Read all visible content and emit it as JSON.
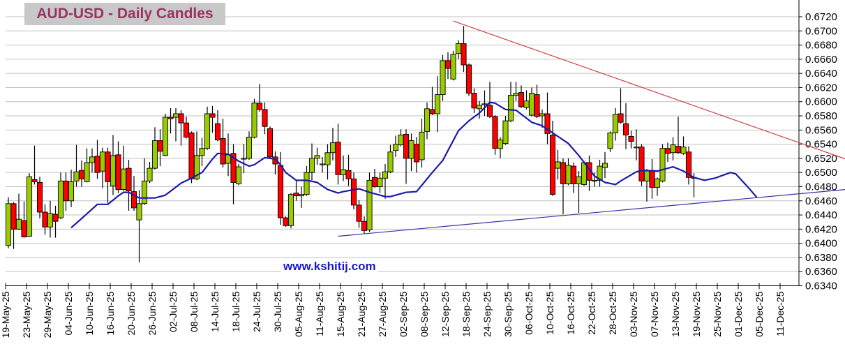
{
  "chart_data": {
    "type": "candlestick",
    "title": "AUD-USD - Daily Candles",
    "watermark": "www.kshitij.com",
    "ylim": [
      0.634,
      0.672
    ],
    "ytick_step": 0.002,
    "grid": true,
    "y_axis_side": "right",
    "colors": {
      "up": "#99cc00",
      "down": "#ff0000",
      "moving_average": "#1a1aaa",
      "resistance": "#d04040",
      "support": "#3333aa",
      "title_text": "#993366",
      "title_bg": "#c8c8c8",
      "watermark": "#1a1acc",
      "grid": "#c0c0c0"
    },
    "x_tick_labels": [
      "19-May-25",
      "23-May-25",
      "29-May-25",
      "04-Jun-25",
      "10-Jun-25",
      "16-Jun-25",
      "20-Jun-25",
      "26-Jun-25",
      "02-Jul-25",
      "08-Jul-25",
      "14-Jul-25",
      "18-Jul-25",
      "24-Jul-25",
      "30-Jul-25",
      "05-Aug-25",
      "11-Aug-25",
      "15-Aug-25",
      "21-Aug-25",
      "27-Aug-25",
      "02-Sep-25",
      "08-Sep-25",
      "12-Sep-25",
      "18-Sep-25",
      "24-Sep-25",
      "30-Sep-25",
      "06-Oct-25",
      "10-Oct-25",
      "16-Oct-25",
      "22-Oct-25",
      "28-Oct-25",
      "03-Nov-25",
      "07-Nov-25",
      "13-Nov-25",
      "19-Nov-25",
      "25-Nov-25",
      "01-Dec-25",
      "05-Dec-25",
      "11-Dec-25"
    ],
    "y_tick_labels": [
      "0.6720",
      "0.6700",
      "0.6680",
      "0.6660",
      "0.6640",
      "0.6620",
      "0.6600",
      "0.6580",
      "0.6560",
      "0.6540",
      "0.6520",
      "0.6500",
      "0.6480",
      "0.6460",
      "0.6440",
      "0.6420",
      "0.6400",
      "0.6380",
      "0.6360",
      "0.6340"
    ],
    "candle_fields": [
      "date",
      "open",
      "high",
      "low",
      "close"
    ],
    "candles": [
      [
        "2025-05-19",
        0.6397,
        0.6465,
        0.6393,
        0.6456
      ],
      [
        "2025-05-20",
        0.6456,
        0.6458,
        0.6392,
        0.642
      ],
      [
        "2025-05-21",
        0.642,
        0.647,
        0.6419,
        0.6434
      ],
      [
        "2025-05-22",
        0.6432,
        0.6459,
        0.6408,
        0.6409
      ],
      [
        "2025-05-23",
        0.641,
        0.6499,
        0.6409,
        0.6494
      ],
      [
        "2025-05-26",
        0.649,
        0.6538,
        0.6483,
        0.6487
      ],
      [
        "2025-05-27",
        0.6486,
        0.6494,
        0.6435,
        0.6444
      ],
      [
        "2025-05-28",
        0.6444,
        0.6455,
        0.6412,
        0.6423
      ],
      [
        "2025-05-29",
        0.6423,
        0.646,
        0.6408,
        0.6442
      ],
      [
        "2025-05-30",
        0.6441,
        0.6453,
        0.6408,
        0.6431
      ],
      [
        "2025-06-02",
        0.6436,
        0.65,
        0.6434,
        0.6488
      ],
      [
        "2025-06-03",
        0.6488,
        0.65,
        0.6446,
        0.646
      ],
      [
        "2025-06-04",
        0.646,
        0.6504,
        0.6451,
        0.6487
      ],
      [
        "2025-06-05",
        0.6488,
        0.6539,
        0.648,
        0.6501
      ],
      [
        "2025-06-06",
        0.6503,
        0.6517,
        0.648,
        0.6491
      ],
      [
        "2025-06-09",
        0.6487,
        0.6534,
        0.6486,
        0.6514
      ],
      [
        "2025-06-10",
        0.6514,
        0.6534,
        0.65,
        0.6522
      ],
      [
        "2025-06-11",
        0.6523,
        0.6546,
        0.6491,
        0.65
      ],
      [
        "2025-06-12",
        0.6502,
        0.6535,
        0.6478,
        0.6529
      ],
      [
        "2025-06-13",
        0.6529,
        0.6535,
        0.6457,
        0.6487
      ],
      [
        "2025-06-16",
        0.6481,
        0.6553,
        0.6468,
        0.6524
      ],
      [
        "2025-06-17",
        0.6525,
        0.6544,
        0.6471,
        0.6476
      ],
      [
        "2025-06-18",
        0.6476,
        0.6538,
        0.6474,
        0.6505
      ],
      [
        "2025-06-19",
        0.6506,
        0.6518,
        0.6446,
        0.6474
      ],
      [
        "2025-06-20",
        0.6473,
        0.6495,
        0.6446,
        0.645
      ],
      [
        "2025-06-23",
        0.6433,
        0.6475,
        0.6373,
        0.6456
      ],
      [
        "2025-06-24",
        0.6456,
        0.652,
        0.6454,
        0.6488
      ],
      [
        "2025-06-25",
        0.6488,
        0.6515,
        0.6485,
        0.6506
      ],
      [
        "2025-06-26",
        0.6506,
        0.6564,
        0.6504,
        0.6545
      ],
      [
        "2025-06-27",
        0.6545,
        0.6561,
        0.6509,
        0.653
      ],
      [
        "2025-06-30",
        0.6524,
        0.6583,
        0.6523,
        0.6578
      ],
      [
        "2025-07-01",
        0.6578,
        0.6591,
        0.6555,
        0.6576
      ],
      [
        "2025-07-02",
        0.6578,
        0.6591,
        0.6544,
        0.6583
      ],
      [
        "2025-07-03",
        0.6583,
        0.6588,
        0.6538,
        0.657
      ],
      [
        "2025-07-04",
        0.657,
        0.6579,
        0.6548,
        0.655
      ],
      [
        "2025-07-07",
        0.6556,
        0.6558,
        0.6485,
        0.6491
      ],
      [
        "2025-07-08",
        0.6491,
        0.6558,
        0.6489,
        0.6524
      ],
      [
        "2025-07-09",
        0.6524,
        0.6549,
        0.6509,
        0.6534
      ],
      [
        "2025-07-10",
        0.6534,
        0.6593,
        0.6532,
        0.6583
      ],
      [
        "2025-07-11",
        0.6583,
        0.6594,
        0.6556,
        0.6578
      ],
      [
        "2025-07-14",
        0.6569,
        0.6588,
        0.6544,
        0.6546
      ],
      [
        "2025-07-15",
        0.6548,
        0.6576,
        0.6507,
        0.6512
      ],
      [
        "2025-07-16",
        0.6513,
        0.6555,
        0.6495,
        0.6525
      ],
      [
        "2025-07-17",
        0.6527,
        0.654,
        0.6455,
        0.6486
      ],
      [
        "2025-07-18",
        0.6484,
        0.6512,
        0.6482,
        0.6508
      ],
      [
        "2025-07-21",
        0.6519,
        0.654,
        0.6499,
        0.652
      ],
      [
        "2025-07-22",
        0.652,
        0.6558,
        0.6518,
        0.655
      ],
      [
        "2025-07-23",
        0.655,
        0.6604,
        0.6548,
        0.6598
      ],
      [
        "2025-07-24",
        0.6598,
        0.6625,
        0.6586,
        0.6589
      ],
      [
        "2025-07-25",
        0.6589,
        0.6599,
        0.6554,
        0.6565
      ],
      [
        "2025-07-28",
        0.6562,
        0.6565,
        0.652,
        0.6522
      ],
      [
        "2025-07-29",
        0.6522,
        0.653,
        0.6497,
        0.6512
      ],
      [
        "2025-07-30",
        0.651,
        0.6529,
        0.6426,
        0.6436
      ],
      [
        "2025-07-31",
        0.6436,
        0.6438,
        0.6423,
        0.6425
      ],
      [
        "2025-08-01",
        0.6425,
        0.6471,
        0.6421,
        0.6469
      ],
      [
        "2025-08-04",
        0.6471,
        0.6488,
        0.646,
        0.6467
      ],
      [
        "2025-08-05",
        0.6467,
        0.648,
        0.645,
        0.6469
      ],
      [
        "2025-08-06",
        0.6469,
        0.6509,
        0.6467,
        0.65
      ],
      [
        "2025-08-07",
        0.65,
        0.6541,
        0.6489,
        0.652
      ],
      [
        "2025-08-08",
        0.652,
        0.6535,
        0.6511,
        0.6524
      ],
      [
        "2025-08-11",
        0.6511,
        0.6522,
        0.65,
        0.6512
      ],
      [
        "2025-08-12",
        0.6511,
        0.654,
        0.649,
        0.6528
      ],
      [
        "2025-08-13",
        0.6528,
        0.6563,
        0.6517,
        0.6542
      ],
      [
        "2025-08-14",
        0.6543,
        0.6569,
        0.6483,
        0.6497
      ],
      [
        "2025-08-15",
        0.6497,
        0.6524,
        0.6488,
        0.6504
      ],
      [
        "2025-08-18",
        0.6503,
        0.6525,
        0.6481,
        0.6491
      ],
      [
        "2025-08-19",
        0.6491,
        0.65,
        0.6448,
        0.6454
      ],
      [
        "2025-08-20",
        0.6454,
        0.6461,
        0.6422,
        0.6431
      ],
      [
        "2025-08-21",
        0.6431,
        0.6438,
        0.6414,
        0.6418
      ],
      [
        "2025-08-22",
        0.6419,
        0.65,
        0.6416,
        0.6489
      ],
      [
        "2025-08-25",
        0.6493,
        0.6505,
        0.6478,
        0.648
      ],
      [
        "2025-08-26",
        0.648,
        0.65,
        0.6471,
        0.6492
      ],
      [
        "2025-08-27",
        0.6492,
        0.6512,
        0.6463,
        0.6501
      ],
      [
        "2025-08-28",
        0.6501,
        0.6539,
        0.6499,
        0.6529
      ],
      [
        "2025-08-29",
        0.6531,
        0.6552,
        0.6522,
        0.654
      ],
      [
        "2025-09-01",
        0.6539,
        0.6561,
        0.6537,
        0.6553
      ],
      [
        "2025-09-02",
        0.6554,
        0.6561,
        0.6484,
        0.652
      ],
      [
        "2025-09-03",
        0.652,
        0.6555,
        0.6502,
        0.6545
      ],
      [
        "2025-09-04",
        0.654,
        0.655,
        0.65,
        0.6515
      ],
      [
        "2025-09-05",
        0.6518,
        0.6576,
        0.6507,
        0.6557
      ],
      [
        "2025-09-08",
        0.6558,
        0.6599,
        0.6547,
        0.659
      ],
      [
        "2025-09-09",
        0.6589,
        0.6621,
        0.6581,
        0.6583
      ],
      [
        "2025-09-10",
        0.6583,
        0.6636,
        0.6557,
        0.661
      ],
      [
        "2025-09-11",
        0.661,
        0.6666,
        0.6601,
        0.6658
      ],
      [
        "2025-09-12",
        0.6658,
        0.667,
        0.6632,
        0.6647
      ],
      [
        "2025-09-15",
        0.6632,
        0.6672,
        0.663,
        0.6667
      ],
      [
        "2025-09-16",
        0.6668,
        0.6687,
        0.666,
        0.6682
      ],
      [
        "2025-09-17",
        0.6682,
        0.6707,
        0.6642,
        0.6652
      ],
      [
        "2025-09-18",
        0.6652,
        0.6654,
        0.6608,
        0.6612
      ],
      [
        "2025-09-19",
        0.6612,
        0.6619,
        0.6584,
        0.6591
      ],
      [
        "2025-09-22",
        0.659,
        0.6601,
        0.6576,
        0.6595
      ],
      [
        "2025-09-23",
        0.6596,
        0.6616,
        0.658,
        0.6597
      ],
      [
        "2025-09-24",
        0.6595,
        0.6628,
        0.6577,
        0.6579
      ],
      [
        "2025-09-25",
        0.6579,
        0.6581,
        0.6525,
        0.6534
      ],
      [
        "2025-09-26",
        0.6534,
        0.655,
        0.652,
        0.6546
      ],
      [
        "2025-09-29",
        0.6541,
        0.658,
        0.6539,
        0.6573
      ],
      [
        "2025-09-30",
        0.6573,
        0.6628,
        0.6571,
        0.6609
      ],
      [
        "2025-10-01",
        0.6609,
        0.6628,
        0.6601,
        0.6612
      ],
      [
        "2025-10-02",
        0.6613,
        0.6623,
        0.6591,
        0.6593
      ],
      [
        "2025-10-03",
        0.6592,
        0.6616,
        0.6589,
        0.6601
      ],
      [
        "2025-10-06",
        0.6581,
        0.662,
        0.6579,
        0.6612
      ],
      [
        "2025-10-07",
        0.661,
        0.6624,
        0.6577,
        0.6579
      ],
      [
        "2025-10-08",
        0.658,
        0.6589,
        0.6563,
        0.6583
      ],
      [
        "2025-10-09",
        0.6583,
        0.6613,
        0.654,
        0.6555
      ],
      [
        "2025-10-10",
        0.6553,
        0.6573,
        0.6467,
        0.6469
      ],
      [
        "2025-10-13",
        0.6506,
        0.6532,
        0.649,
        0.6515
      ],
      [
        "2025-10-14",
        0.6514,
        0.652,
        0.6441,
        0.6484
      ],
      [
        "2025-10-15",
        0.6484,
        0.652,
        0.6482,
        0.651
      ],
      [
        "2025-10-16",
        0.6509,
        0.6514,
        0.6471,
        0.6484
      ],
      [
        "2025-10-17",
        0.6484,
        0.6502,
        0.6443,
        0.6494
      ],
      [
        "2025-10-20",
        0.6483,
        0.6516,
        0.6481,
        0.6514
      ],
      [
        "2025-10-21",
        0.6514,
        0.6524,
        0.6474,
        0.6489
      ],
      [
        "2025-10-22",
        0.6489,
        0.65,
        0.648,
        0.6489
      ],
      [
        "2025-10-23",
        0.6489,
        0.6518,
        0.648,
        0.6509
      ],
      [
        "2025-10-24",
        0.6507,
        0.6529,
        0.6492,
        0.6513
      ],
      [
        "2025-10-27",
        0.6534,
        0.6558,
        0.6529,
        0.6556
      ],
      [
        "2025-10-28",
        0.6556,
        0.6591,
        0.6545,
        0.6582
      ],
      [
        "2025-10-29",
        0.6583,
        0.6619,
        0.6569,
        0.6571
      ],
      [
        "2025-10-30",
        0.6569,
        0.6598,
        0.6533,
        0.6553
      ],
      [
        "2025-10-31",
        0.6551,
        0.6559,
        0.6534,
        0.6544
      ],
      [
        "2025-11-03",
        0.6536,
        0.6561,
        0.6517,
        0.6536
      ],
      [
        "2025-11-04",
        0.6536,
        0.654,
        0.6481,
        0.6488
      ],
      [
        "2025-11-05",
        0.6488,
        0.6505,
        0.6459,
        0.6503
      ],
      [
        "2025-11-06",
        0.6503,
        0.6519,
        0.6463,
        0.6479
      ],
      [
        "2025-11-07",
        0.6479,
        0.6493,
        0.6467,
        0.6491
      ],
      [
        "2025-11-10",
        0.6488,
        0.654,
        0.6486,
        0.6534
      ],
      [
        "2025-11-11",
        0.6534,
        0.6542,
        0.6515,
        0.6527
      ],
      [
        "2025-11-12",
        0.6528,
        0.655,
        0.6517,
        0.6539
      ],
      [
        "2025-11-13",
        0.6537,
        0.6579,
        0.6526,
        0.6528
      ],
      [
        "2025-11-14",
        0.6527,
        0.6551,
        0.6525,
        0.6536
      ],
      [
        "2025-11-17",
        0.6529,
        0.6537,
        0.6483,
        0.6493
      ],
      [
        "2025-11-18",
        0.6493,
        0.6499,
        0.6465,
        0.6493
      ]
    ],
    "moving_average": [
      [
        "2025-06-04",
        0.6422
      ],
      [
        "2025-06-06",
        0.6435
      ],
      [
        "2025-06-11",
        0.6455
      ],
      [
        "2025-06-13",
        0.6455
      ],
      [
        "2025-06-17",
        0.6467
      ],
      [
        "2025-06-18",
        0.6472
      ],
      [
        "2025-06-19",
        0.6472
      ],
      [
        "2025-06-23",
        0.6464
      ],
      [
        "2025-06-26",
        0.6464
      ],
      [
        "2025-06-30",
        0.6468
      ],
      [
        "2025-07-03",
        0.6485
      ],
      [
        "2025-07-07",
        0.6492
      ],
      [
        "2025-07-09",
        0.65
      ],
      [
        "2025-07-11",
        0.6519
      ],
      [
        "2025-07-14",
        0.6527
      ],
      [
        "2025-07-16",
        0.6526
      ],
      [
        "2025-07-18",
        0.6516
      ],
      [
        "2025-07-22",
        0.6509
      ],
      [
        "2025-07-23",
        0.6511
      ],
      [
        "2025-07-25",
        0.6521
      ],
      [
        "2025-07-29",
        0.6519
      ],
      [
        "2025-07-30",
        0.6511
      ],
      [
        "2025-07-31",
        0.65
      ],
      [
        "2025-08-04",
        0.6489
      ],
      [
        "2025-08-06",
        0.6489
      ],
      [
        "2025-08-08",
        0.6486
      ],
      [
        "2025-08-12",
        0.6476
      ],
      [
        "2025-08-14",
        0.6471
      ],
      [
        "2025-08-15",
        0.6473
      ],
      [
        "2025-08-20",
        0.6477
      ],
      [
        "2025-08-22",
        0.6472
      ],
      [
        "2025-08-27",
        0.6466
      ],
      [
        "2025-08-28",
        0.6466
      ],
      [
        "2025-09-02",
        0.6472
      ],
      [
        "2025-09-04",
        0.6473
      ],
      [
        "2025-09-09",
        0.65
      ],
      [
        "2025-09-11",
        0.6517
      ],
      [
        "2025-09-16",
        0.6559
      ],
      [
        "2025-09-18",
        0.6573
      ],
      [
        "2025-09-22",
        0.6584
      ],
      [
        "2025-09-24",
        0.6599
      ],
      [
        "2025-09-25",
        0.6598
      ],
      [
        "2025-09-29",
        0.6589
      ],
      [
        "2025-10-01",
        0.6588
      ],
      [
        "2025-10-06",
        0.6571
      ],
      [
        "2025-10-08",
        0.6566
      ],
      [
        "2025-10-10",
        0.6556
      ],
      [
        "2025-10-15",
        0.6541
      ],
      [
        "2025-10-17",
        0.6524
      ],
      [
        "2025-10-22",
        0.6495
      ],
      [
        "2025-10-24",
        0.6486
      ],
      [
        "2025-10-28",
        0.6483
      ],
      [
        "2025-10-29",
        0.6488
      ],
      [
        "2025-11-03",
        0.6501
      ],
      [
        "2025-11-04",
        0.6503
      ],
      [
        "2025-11-07",
        0.6502
      ],
      [
        "2025-11-12",
        0.6508
      ],
      [
        "2025-11-14",
        0.6502
      ],
      [
        "2025-11-18",
        0.6493
      ],
      [
        "2025-11-20",
        0.6489
      ],
      [
        "2025-11-24",
        0.6492
      ],
      [
        "2025-11-27",
        0.65
      ],
      [
        "2025-11-28",
        0.6498
      ],
      [
        "2025-12-02",
        0.6482
      ],
      [
        "2025-12-04",
        0.6465
      ]
    ],
    "trendlines": [
      {
        "role": "resistance",
        "from": [
          "2025-09-15",
          0.6714
        ],
        "to": [
          "2025-12-29",
          0.6519
        ]
      },
      {
        "role": "support",
        "from": [
          "2025-08-14",
          0.641
        ],
        "to": [
          "2025-12-29",
          0.6476
        ]
      }
    ]
  }
}
